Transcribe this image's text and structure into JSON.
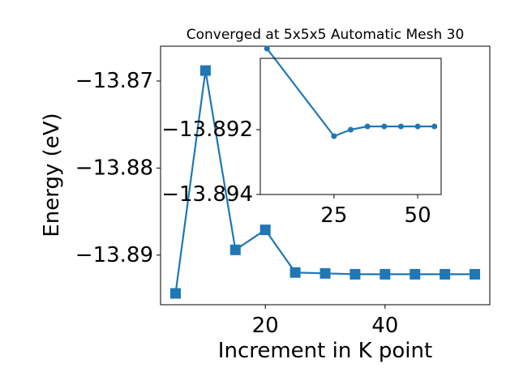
{
  "chart_data": [
    {
      "id": "main",
      "type": "line",
      "title": "Converged at 5x5x5 Automatic Mesh 30",
      "xlabel": "Increment in K point",
      "ylabel": "Energy (eV)",
      "xlim": [
        2.5,
        57.5
      ],
      "ylim": [
        -13.8957,
        -13.866
      ],
      "xticks": [
        20,
        40
      ],
      "yticks": [
        -13.87,
        -13.88,
        -13.89
      ],
      "ytick_labels": [
        "−13.87",
        "−13.88",
        "−13.89"
      ],
      "marker": "square",
      "color": "#1f77b4",
      "x": [
        5,
        10,
        15,
        20,
        25,
        30,
        35,
        40,
        45,
        50,
        55
      ],
      "y": [
        -13.8944,
        -13.8688,
        -13.8894,
        -13.8871,
        -13.892,
        -13.8921,
        -13.8922,
        -13.8922,
        -13.8922,
        -13.8922,
        -13.8922
      ]
    },
    {
      "id": "inset",
      "type": "line",
      "xlim": [
        3,
        57
      ],
      "ylim": [
        -13.894,
        -13.8898
      ],
      "xticks": [
        25,
        50
      ],
      "yticks": [
        -13.894,
        -13.892
      ],
      "ytick_labels": [
        "−13.894",
        "−13.892"
      ],
      "marker": "circle",
      "color": "#1f77b4",
      "x": [
        5,
        25,
        30,
        35,
        40,
        45,
        50,
        55
      ],
      "y": [
        -13.8895,
        -13.8922,
        -13.892,
        -13.8919,
        -13.8919,
        -13.8919,
        -13.8919,
        -13.8919
      ]
    }
  ]
}
